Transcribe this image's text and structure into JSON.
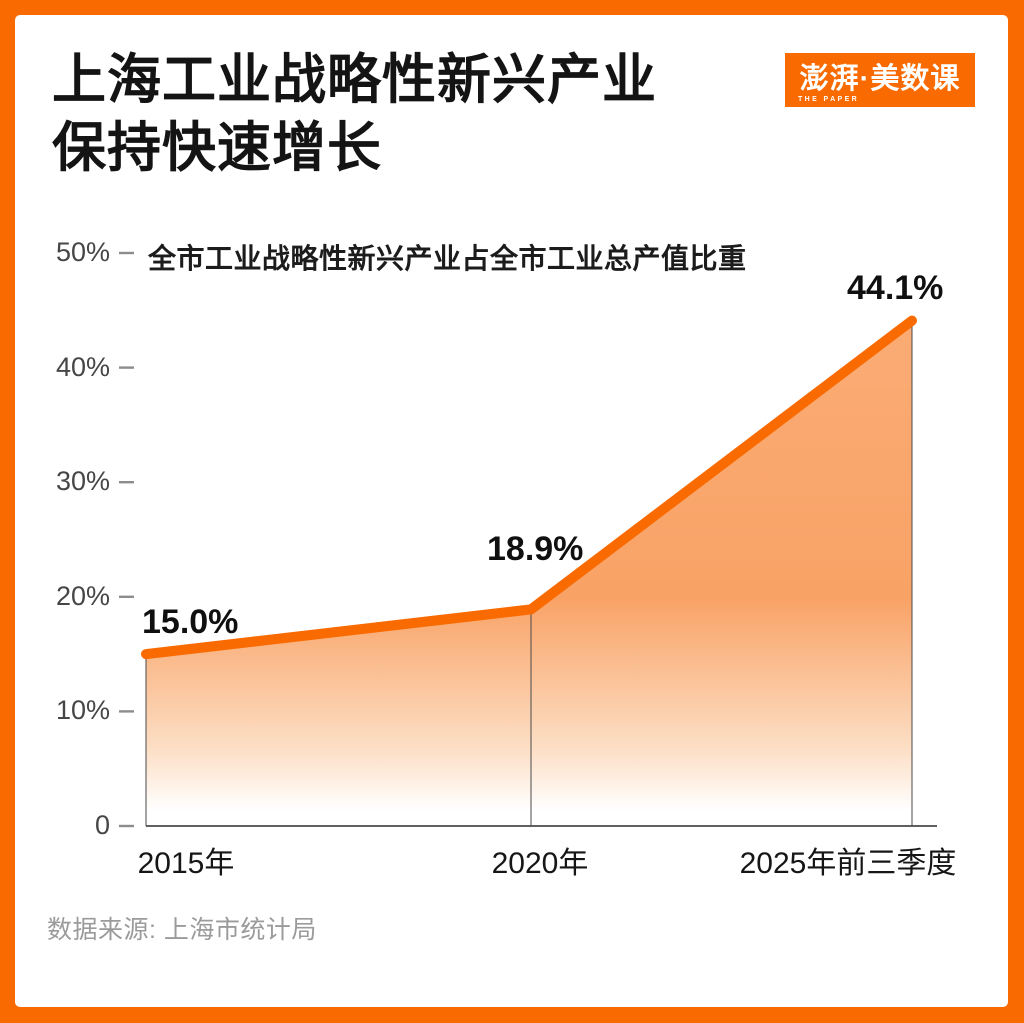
{
  "page": {
    "title_line1": "上海工业战略性新兴产业",
    "title_line2": "保持快速增长",
    "source": "数据来源:  上海市统计局"
  },
  "logo": {
    "text": "澎湃·美数课",
    "subtext": "THE PAPER",
    "bg_color": "#F96A00"
  },
  "colors": {
    "brand_orange": "#F96A00",
    "area_top": "#FAAC75",
    "area_mid": "#F9A266",
    "area_fade": "#FCDFC6",
    "area_bottom": "#FFFFFF",
    "axis_line_gray": "#4A4A4A",
    "tick_gray": "#8C8C8C",
    "text_dark": "#141414",
    "source_gray": "#9B9B9B"
  },
  "chart_data": {
    "type": "area",
    "title": "全市工业战略性新兴产业占全市工业总产值比重",
    "categories": [
      "2015年",
      "2020年",
      "2025年前三季度"
    ],
    "values": [
      15.0,
      18.9,
      44.1
    ],
    "point_labels": [
      "15.0%",
      "18.9%",
      "44.1%"
    ],
    "y_ticks": [
      {
        "label": "50%",
        "value": 50
      },
      {
        "label": "40%",
        "value": 40
      },
      {
        "label": "30%",
        "value": 30
      },
      {
        "label": "20%",
        "value": 20
      },
      {
        "label": "10%",
        "value": 10
      },
      {
        "label": "0",
        "value": 0
      }
    ],
    "ylim": [
      0,
      50
    ],
    "xlabel": "",
    "ylabel": "",
    "grid": false,
    "legend": "none"
  }
}
